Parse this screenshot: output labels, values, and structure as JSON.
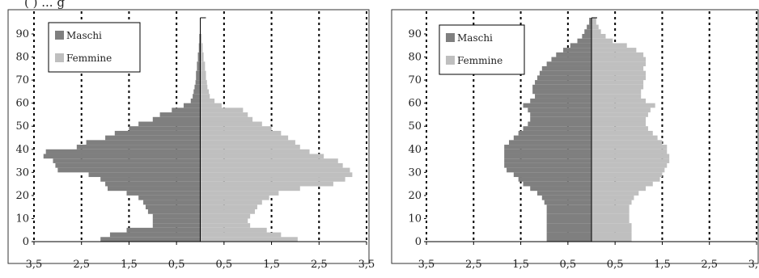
{
  "caption_fragment": "(  ) ... g",
  "chart_data": [
    {
      "type": "bar",
      "orientation": "horizontal-population-pyramid",
      "legend": {
        "placement": "top-left",
        "entries": [
          "Maschi",
          "Femmine"
        ]
      },
      "colors": {
        "male": "#7f7f7f",
        "female": "#bfbfbf"
      },
      "xlim": [
        -3.5,
        3.5
      ],
      "ylim": [
        0,
        100
      ],
      "x_tick_labels": [
        "3,5",
        "2,5",
        "1,5",
        "0,5",
        "0,5",
        "1,5",
        "2,5",
        "3,5"
      ],
      "x_ticks": [
        -3.5,
        -2.5,
        -1.5,
        -0.5,
        0.5,
        1.5,
        2.5,
        3.5
      ],
      "y_ticks": [
        0,
        10,
        20,
        30,
        40,
        50,
        60,
        70,
        80,
        90
      ],
      "grid": "dotted vertical lines at 0.5, 1.5, 2.5, 3.5",
      "series": [
        {
          "name": "Maschi",
          "ages": [
            0,
            2,
            4,
            6,
            8,
            10,
            12,
            14,
            16,
            18,
            20,
            22,
            24,
            26,
            28,
            30,
            32,
            34,
            36,
            38,
            40,
            42,
            44,
            46,
            48,
            50,
            52,
            54,
            56,
            58,
            60,
            62,
            64,
            66,
            68,
            70,
            74,
            78,
            82,
            86
          ],
          "values": [
            2.1,
            1.9,
            1.55,
            1.0,
            1.0,
            1.0,
            1.1,
            1.15,
            1.2,
            1.3,
            1.55,
            1.95,
            2.0,
            2.1,
            2.35,
            3.0,
            3.05,
            3.1,
            3.3,
            3.25,
            2.6,
            2.4,
            2.0,
            1.8,
            1.5,
            1.3,
            1.0,
            0.85,
            0.6,
            0.35,
            0.2,
            0.16,
            0.14,
            0.12,
            0.1,
            0.09,
            0.07,
            0.05,
            0.03,
            0.02
          ]
        },
        {
          "name": "Femmine",
          "ages": [
            0,
            2,
            4,
            6,
            8,
            10,
            12,
            14,
            16,
            18,
            20,
            22,
            24,
            26,
            28,
            30,
            32,
            34,
            36,
            38,
            40,
            42,
            44,
            46,
            48,
            50,
            52,
            54,
            56,
            58,
            60,
            62,
            64,
            66,
            68,
            70,
            74,
            78,
            82,
            86
          ],
          "values": [
            2.05,
            1.7,
            1.4,
            1.05,
            1.0,
            1.05,
            1.15,
            1.2,
            1.3,
            1.45,
            1.65,
            2.1,
            2.8,
            3.05,
            3.2,
            3.15,
            3.0,
            2.9,
            2.6,
            2.3,
            2.1,
            2.0,
            1.85,
            1.7,
            1.5,
            1.3,
            1.1,
            1.0,
            0.9,
            0.45,
            0.3,
            0.2,
            0.18,
            0.15,
            0.14,
            0.12,
            0.1,
            0.07,
            0.05,
            0.03
          ]
        }
      ]
    },
    {
      "type": "bar",
      "orientation": "horizontal-population-pyramid",
      "legend": {
        "placement": "top-left",
        "entries": [
          "Maschi",
          "Femmine"
        ]
      },
      "colors": {
        "male": "#7f7f7f",
        "female": "#bfbfbf"
      },
      "xlim": [
        -3.5,
        3.5
      ],
      "ylim": [
        0,
        100
      ],
      "x_tick_labels": [
        "3,5",
        "2,5",
        "1,5",
        "0,5",
        "0,5",
        "1,5",
        "2,5",
        "3,5"
      ],
      "x_ticks": [
        -3.5,
        -2.5,
        -1.5,
        -0.5,
        0.5,
        1.5,
        2.5,
        3.5
      ],
      "y_ticks": [
        0,
        10,
        20,
        30,
        40,
        50,
        60,
        70,
        80,
        90
      ],
      "grid": "dotted vertical lines at 0.5, 1.5, 2.5, 3.5",
      "series": [
        {
          "name": "Maschi",
          "ages": [
            0,
            4,
            8,
            12,
            16,
            18,
            20,
            22,
            24,
            26,
            28,
            30,
            32,
            34,
            36,
            38,
            40,
            42,
            44,
            46,
            48,
            50,
            52,
            54,
            56,
            58,
            60,
            62,
            64,
            66,
            68,
            70,
            72,
            74,
            76,
            78,
            80,
            82,
            84,
            86,
            88,
            90,
            92,
            94
          ],
          "values": [
            0.95,
            0.95,
            0.95,
            0.95,
            1.0,
            1.05,
            1.15,
            1.3,
            1.45,
            1.55,
            1.65,
            1.8,
            1.85,
            1.85,
            1.85,
            1.85,
            1.85,
            1.75,
            1.65,
            1.55,
            1.45,
            1.35,
            1.3,
            1.3,
            1.35,
            1.45,
            1.3,
            1.2,
            1.25,
            1.25,
            1.2,
            1.15,
            1.1,
            1.05,
            0.95,
            0.85,
            0.75,
            0.6,
            0.45,
            0.3,
            0.2,
            0.15,
            0.1,
            0.05
          ]
        },
        {
          "name": "Femmine",
          "ages": [
            0,
            4,
            8,
            12,
            16,
            18,
            20,
            22,
            24,
            26,
            28,
            30,
            32,
            34,
            36,
            38,
            40,
            42,
            44,
            46,
            48,
            50,
            52,
            54,
            56,
            58,
            60,
            62,
            64,
            66,
            68,
            70,
            72,
            74,
            76,
            78,
            80,
            82,
            84,
            86,
            88,
            90,
            92,
            94
          ],
          "values": [
            0.85,
            0.85,
            0.8,
            0.8,
            0.85,
            0.9,
            1.0,
            1.15,
            1.3,
            1.45,
            1.5,
            1.55,
            1.6,
            1.65,
            1.65,
            1.6,
            1.6,
            1.5,
            1.4,
            1.3,
            1.2,
            1.15,
            1.15,
            1.2,
            1.25,
            1.35,
            1.15,
            1.05,
            1.05,
            1.1,
            1.1,
            1.15,
            1.15,
            1.1,
            1.15,
            1.15,
            1.1,
            0.95,
            0.75,
            0.45,
            0.3,
            0.2,
            0.15,
            0.1
          ]
        }
      ]
    }
  ]
}
